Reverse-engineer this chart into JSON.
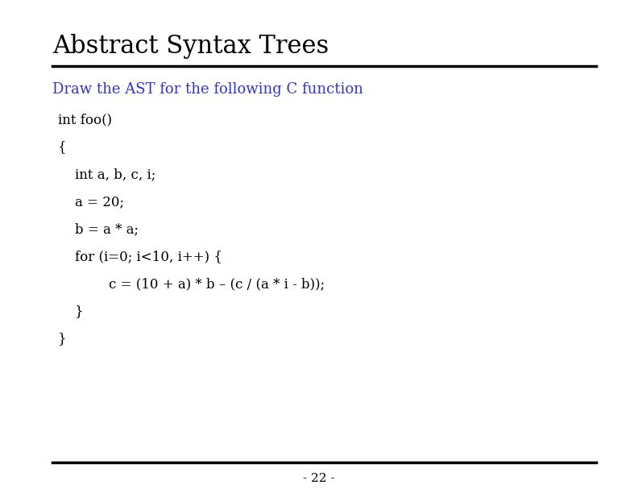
{
  "title": "Abstract Syntax Trees",
  "subtitle": "Draw the AST for the following C function",
  "subtitle_color": "#3333cc",
  "code_lines": [
    "int foo()",
    "{",
    "    int a, b, c, i;",
    "    a = 20;",
    "    b = a * a;",
    "    for (i=0; i<10, i++) {",
    "            c = (10 + a) * b – (c / (a * i - b));",
    "    }",
    "}"
  ],
  "page_number": "- 22 -",
  "background_color": "#ffffff",
  "title_color": "#000000",
  "code_color": "#000000",
  "title_fontsize": 22,
  "subtitle_fontsize": 13,
  "code_fontsize": 12,
  "page_fontsize": 11
}
